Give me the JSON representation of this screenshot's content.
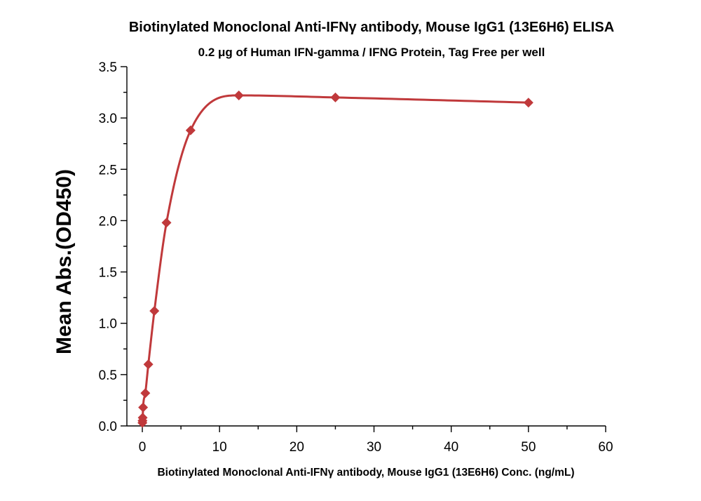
{
  "chart_data": {
    "type": "scatter",
    "title": "Biotinylated Monoclonal Anti-IFNγ antibody, Mouse IgG1 (13E6H6) ELISA",
    "subtitle": "0.2 μg of Human IFN-gamma / IFNG Protein, Tag Free per well",
    "xlabel": "Biotinylated Monoclonal Anti-IFNγ antibody, Mouse IgG1 (13E6H6) Conc. (ng/mL)",
    "ylabel": "Mean Abs.(OD450)",
    "xlim": [
      -2,
      60
    ],
    "ylim": [
      0,
      3.5
    ],
    "x_ticks": [
      0,
      10,
      20,
      30,
      40,
      50,
      60
    ],
    "x_tick_labels": [
      "0",
      "10",
      "20",
      "30",
      "40",
      "50",
      "60"
    ],
    "y_ticks": [
      0,
      0.5,
      1,
      1.5,
      2,
      2.5,
      3,
      3.5
    ],
    "y_tick_labels": [
      "0.0",
      "0.5",
      "1.0",
      "1.5",
      "2.0",
      "2.5",
      "3.0",
      "3.5"
    ],
    "grid": false,
    "color": "#c0393b",
    "series": [
      {
        "marker": "diamond",
        "fit_line": true,
        "points": [
          {
            "x": 0.012,
            "y": 0.03
          },
          {
            "x": 0.024,
            "y": 0.05
          },
          {
            "x": 0.049,
            "y": 0.08
          },
          {
            "x": 0.098,
            "y": 0.18
          },
          {
            "x": 0.39,
            "y": 0.32
          },
          {
            "x": 0.78,
            "y": 0.6
          },
          {
            "x": 1.56,
            "y": 1.12
          },
          {
            "x": 3.13,
            "y": 1.98
          },
          {
            "x": 6.25,
            "y": 2.88
          },
          {
            "x": 12.5,
            "y": 3.22
          },
          {
            "x": 25,
            "y": 3.2
          },
          {
            "x": 50,
            "y": 3.15
          }
        ]
      }
    ]
  }
}
